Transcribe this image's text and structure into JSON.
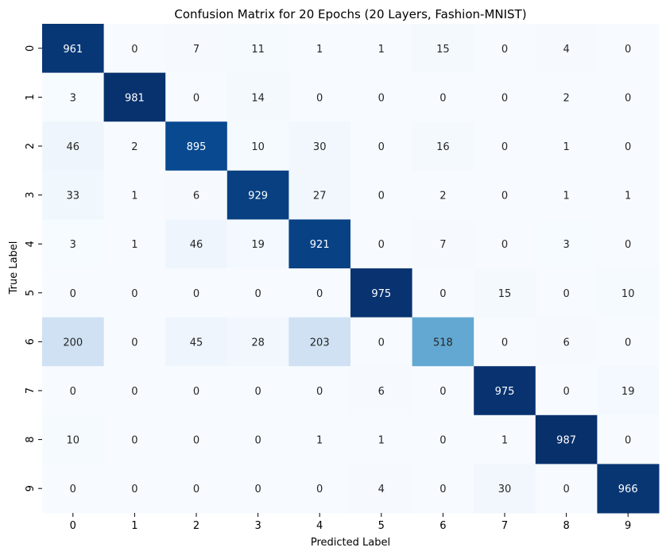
{
  "chart_data": {
    "type": "heatmap",
    "title": "Confusion Matrix for 20 Epochs (20 Layers, Fashion-MNIST)",
    "xlabel": "Predicted Label",
    "ylabel": "True Label",
    "x_categories": [
      "0",
      "1",
      "2",
      "3",
      "4",
      "5",
      "6",
      "7",
      "8",
      "9"
    ],
    "y_categories": [
      "0",
      "1",
      "2",
      "3",
      "4",
      "5",
      "6",
      "7",
      "8",
      "9"
    ],
    "values": [
      [
        961,
        0,
        7,
        11,
        1,
        1,
        15,
        0,
        4,
        0
      ],
      [
        3,
        981,
        0,
        14,
        0,
        0,
        0,
        0,
        2,
        0
      ],
      [
        46,
        2,
        895,
        10,
        30,
        0,
        16,
        0,
        1,
        0
      ],
      [
        33,
        1,
        6,
        929,
        27,
        0,
        2,
        0,
        1,
        1
      ],
      [
        3,
        1,
        46,
        19,
        921,
        0,
        7,
        0,
        3,
        0
      ],
      [
        0,
        0,
        0,
        0,
        0,
        975,
        0,
        15,
        0,
        10
      ],
      [
        200,
        0,
        45,
        28,
        203,
        0,
        518,
        0,
        6,
        0
      ],
      [
        0,
        0,
        0,
        0,
        0,
        6,
        0,
        975,
        0,
        19
      ],
      [
        10,
        0,
        0,
        0,
        1,
        1,
        0,
        1,
        987,
        0
      ],
      [
        0,
        0,
        0,
        0,
        0,
        4,
        0,
        30,
        0,
        966
      ]
    ],
    "value_range": [
      0,
      987
    ],
    "colormap": "Blues",
    "colorbar": false,
    "grid": false,
    "annotated": true
  }
}
